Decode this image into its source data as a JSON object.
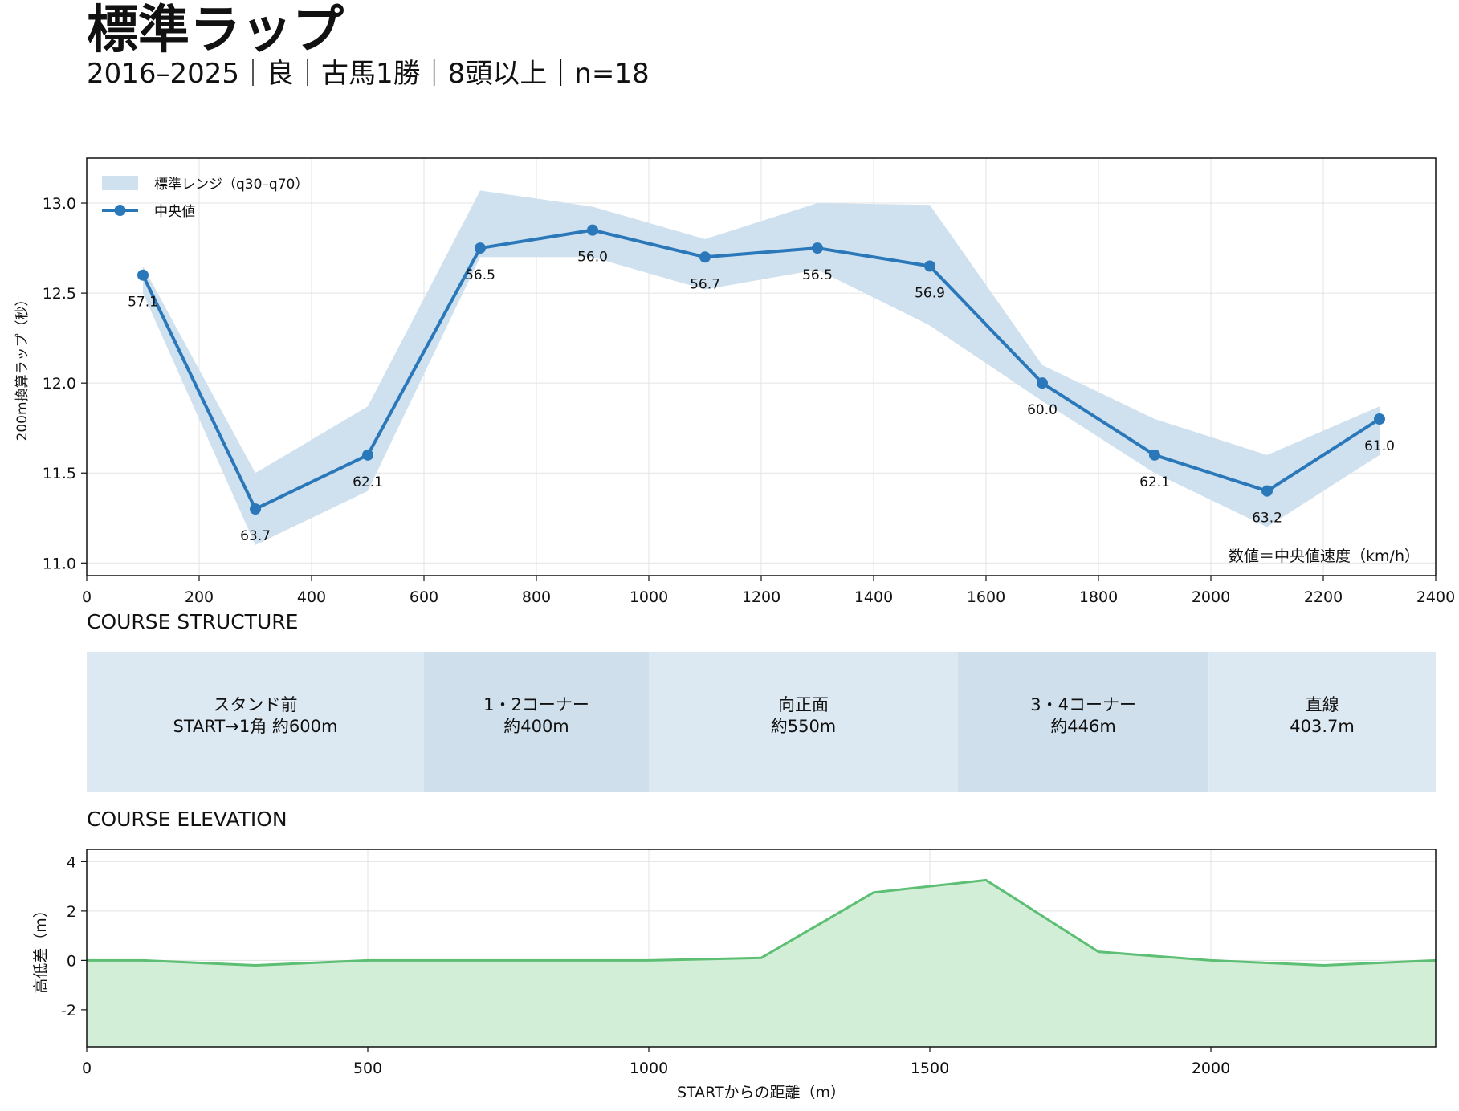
{
  "header": {
    "title": "標準ラップ",
    "subtitle": "2016–2025｜良｜古馬1勝｜8頭以上｜n=18"
  },
  "colors": {
    "line": "#2a78b9",
    "band": "#cfe0ee",
    "segment_light": "#dde9f2",
    "segment_dark": "#cfe0ec",
    "elevation_line": "#5cbf73",
    "elevation_fill": "#d2eed7",
    "grid": "#e3e3e3"
  },
  "chart_data": [
    {
      "type": "line",
      "ylabel": "200m換算ラップ（秒）",
      "xlim": [
        0,
        2400
      ],
      "ylim": [
        13.25,
        10.93
      ],
      "y_inverted": true,
      "grid": true,
      "legend_position": "top-left",
      "legend": {
        "band": "標準レンジ（q30–q70）",
        "line": "中央値"
      },
      "annotation": "数値＝中央値速度（km/h）",
      "x_ticks": [
        "0",
        "200",
        "400",
        "600",
        "800",
        "1000",
        "1200",
        "1400",
        "1600",
        "1800",
        "2000",
        "2200",
        "2400"
      ],
      "y_ticks": [
        "11.0",
        "11.5",
        "12.0",
        "12.5",
        "13.0"
      ],
      "x": [
        100,
        300,
        500,
        700,
        900,
        1100,
        1300,
        1500,
        1700,
        1900,
        2100,
        2300
      ],
      "median": [
        12.6,
        11.3,
        11.6,
        12.75,
        12.85,
        12.7,
        12.75,
        12.65,
        12.0,
        11.6,
        11.4,
        11.8
      ],
      "q30": [
        12.5,
        11.1,
        11.4,
        12.7,
        12.7,
        12.52,
        12.63,
        12.32,
        11.9,
        11.5,
        11.2,
        11.6
      ],
      "q70": [
        12.65,
        11.5,
        11.87,
        13.07,
        12.98,
        12.8,
        13.0,
        12.99,
        12.1,
        11.8,
        11.6,
        11.87
      ],
      "speed_labels": [
        "57.1",
        "63.7",
        "62.1",
        "56.5",
        "56.0",
        "56.7",
        "56.5",
        "56.9",
        "60.0",
        "62.1",
        "63.2",
        "61.0"
      ]
    },
    {
      "type": "area",
      "ylabel": "高低差（m）",
      "xlabel": "STARTからの距離（m）",
      "xlim": [
        0,
        2400
      ],
      "ylim": [
        -3.5,
        4.5
      ],
      "grid": true,
      "x_ticks": [
        "0",
        "500",
        "1000",
        "1500",
        "2000"
      ],
      "y_ticks": [
        "4",
        "2",
        "0",
        "-2"
      ],
      "x": [
        0,
        100,
        300,
        500,
        1000,
        1200,
        1400,
        1600,
        1800,
        2000,
        2200,
        2400
      ],
      "y": [
        0,
        0,
        -0.2,
        0,
        0,
        0.1,
        2.75,
        3.25,
        0.35,
        0,
        -0.2,
        0
      ]
    }
  ],
  "course_structure": {
    "label": "COURSE STRUCTURE",
    "segments": [
      {
        "line1": "スタンド前",
        "line2": "START→1角 約600m",
        "start": 0,
        "end": 600,
        "tone": "light"
      },
      {
        "line1": "1・2コーナー",
        "line2": "約400m",
        "start": 600,
        "end": 1000,
        "tone": "dark"
      },
      {
        "line1": "向正面",
        "line2": "約550m",
        "start": 1000,
        "end": 1550,
        "tone": "light"
      },
      {
        "line1": "3・4コーナー",
        "line2": "約446m",
        "start": 1550,
        "end": 1996,
        "tone": "dark"
      },
      {
        "line1": "直線",
        "line2": "403.7m",
        "start": 1996,
        "end": 2400,
        "tone": "light"
      }
    ]
  },
  "course_elevation": {
    "label": "COURSE ELEVATION"
  }
}
